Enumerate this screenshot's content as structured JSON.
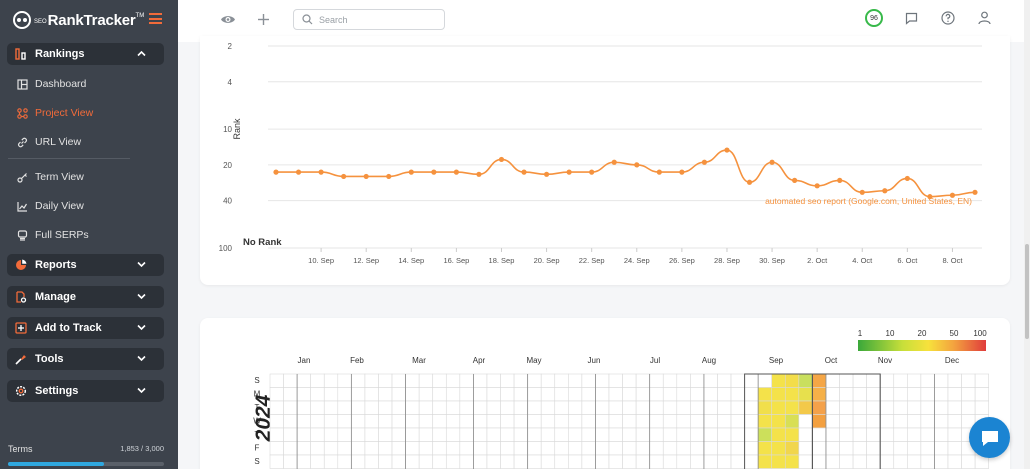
{
  "brand": {
    "pre": "SEO",
    "name": "RankTracker",
    "tm": "TM"
  },
  "sidebar": {
    "rankings": {
      "label": "Rankings"
    },
    "items": [
      {
        "label": "Dashboard",
        "icon": "dashboard-icon"
      },
      {
        "label": "Project View",
        "icon": "project-view-icon",
        "active": true
      },
      {
        "label": "URL View",
        "icon": "link-icon"
      },
      {
        "label": "Term View",
        "icon": "key-icon"
      },
      {
        "label": "Daily View",
        "icon": "line-chart-icon"
      },
      {
        "label": "Full SERPs",
        "icon": "full-serps-icon"
      }
    ],
    "groups": [
      {
        "label": "Reports",
        "icon": "reports-icon"
      },
      {
        "label": "Manage",
        "icon": "manage-icon"
      },
      {
        "label": "Add to Track",
        "icon": "add-to-track-icon"
      },
      {
        "label": "Tools",
        "icon": "tools-icon"
      },
      {
        "label": "Settings",
        "icon": "settings-icon"
      }
    ],
    "terms": {
      "label": "Terms",
      "count": "1,853 / 3,000",
      "used_fraction": 0.6177
    }
  },
  "topbar": {
    "search_placeholder": "Search",
    "score": "96"
  },
  "colors": {
    "accent": "#f26b3a",
    "line": "#f5923e",
    "score_ring": "#38b94a",
    "chat": "#1b84d2"
  },
  "chart_data": {
    "type": "line",
    "ylabel": "Rank",
    "y_scale": "log",
    "yticks": [
      "2",
      "4",
      "10",
      "20",
      "40",
      "100"
    ],
    "y_bottom_label": "No Rank",
    "xticks": [
      "10. Sep",
      "12. Sep",
      "14. Sep",
      "16. Sep",
      "18. Sep",
      "20. Sep",
      "22. Sep",
      "24. Sep",
      "26. Sep",
      "28. Sep",
      "30. Sep",
      "2. Oct",
      "4. Oct",
      "6. Oct",
      "8. Oct"
    ],
    "series": [
      {
        "name": "automated seo report (Google.com, United States, EN)",
        "color": "#f5923e",
        "x": [
          "2024-09-08",
          "2024-09-09",
          "2024-09-10",
          "2024-09-11",
          "2024-09-12",
          "2024-09-13",
          "2024-09-14",
          "2024-09-15",
          "2024-09-16",
          "2024-09-17",
          "2024-09-18",
          "2024-09-19",
          "2024-09-20",
          "2024-09-21",
          "2024-09-22",
          "2024-09-23",
          "2024-09-24",
          "2024-09-25",
          "2024-09-26",
          "2024-09-27",
          "2024-09-28",
          "2024-09-29",
          "2024-09-30",
          "2024-10-01",
          "2024-10-02",
          "2024-10-03",
          "2024-10-04",
          "2024-10-05",
          "2024-10-06",
          "2024-10-07",
          "2024-10-08",
          "2024-10-09"
        ],
        "values": [
          23,
          23,
          23,
          25,
          25,
          25,
          23,
          23,
          23,
          24,
          18,
          23,
          24,
          23,
          23,
          19,
          20,
          23,
          23,
          19,
          15,
          28,
          19,
          27,
          30,
          27,
          34,
          33,
          26,
          37,
          36,
          34
        ]
      }
    ]
  },
  "heatmap": {
    "year": "2024",
    "months": [
      "Jan",
      "Feb",
      "Mar",
      "Apr",
      "May",
      "Jun",
      "Jul",
      "Aug",
      "Sep",
      "Oct",
      "Nov",
      "Dec"
    ],
    "days": [
      "S",
      "M",
      "T",
      "W",
      "T",
      "F",
      "S"
    ],
    "legend": [
      "1",
      "10",
      "20",
      "50",
      "100"
    ]
  }
}
